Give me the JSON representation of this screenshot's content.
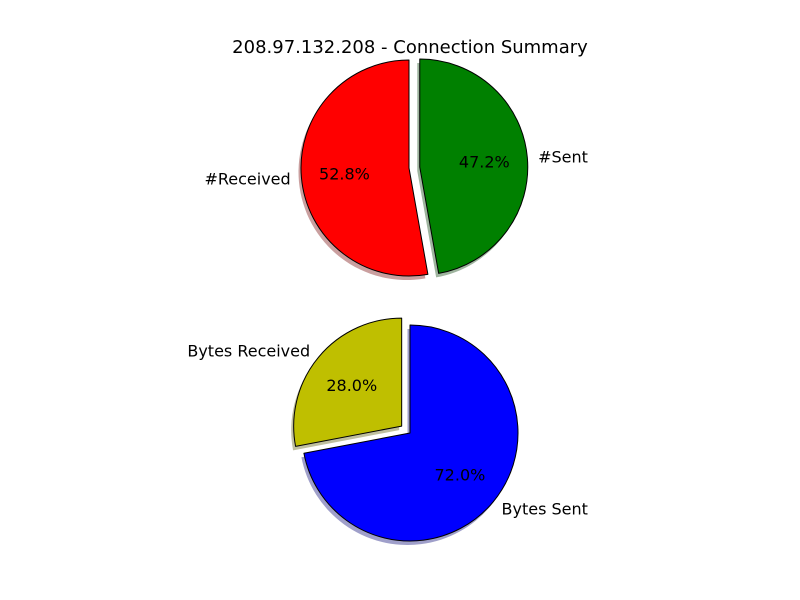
{
  "page_title": "208.97.132.208 - Connection Summary",
  "chart_data": [
    {
      "type": "pie",
      "title": "208.97.132.208 - Connection Summary",
      "labels": [
        "#Received",
        "#Sent"
      ],
      "values": [
        52.8,
        47.2
      ],
      "percent_labels": [
        "52.8%",
        "47.2%"
      ],
      "colors": [
        "#ff0000",
        "#008000"
      ],
      "start_angle_deg": 90,
      "direction": "counterclockwise",
      "explode": [
        0,
        0.1
      ],
      "shadow": true
    },
    {
      "type": "pie",
      "labels": [
        "Bytes Received",
        "Bytes Sent"
      ],
      "values": [
        28.0,
        72.0
      ],
      "percent_labels": [
        "28.0%",
        "72.0%"
      ],
      "colors": [
        "#bfbf00",
        "#0000ff"
      ],
      "start_angle_deg": 90,
      "direction": "counterclockwise",
      "explode": [
        0.1,
        0
      ],
      "shadow": true
    }
  ]
}
